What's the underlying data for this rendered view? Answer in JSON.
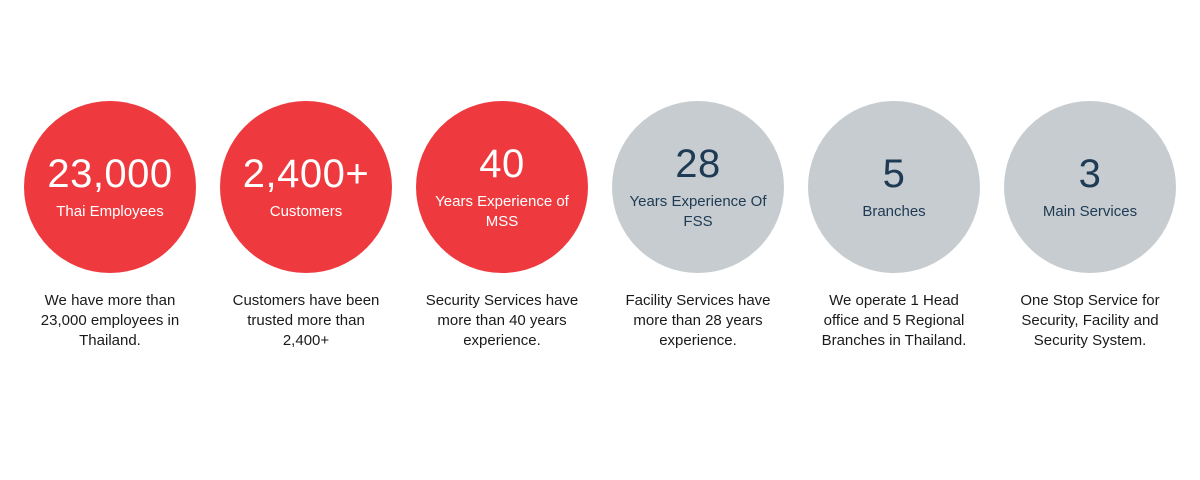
{
  "colors": {
    "circle_red": "#EE3A3E",
    "circle_gray": "#C6CCCF",
    "navy_text": "#1E3A54",
    "body_text": "#1A1A1A",
    "background": "#FFFFFF"
  },
  "stats": [
    {
      "value": "23,000",
      "label": "Thai Employees",
      "description": "We have more than 23,000 employees in Thailand.",
      "variant": "red"
    },
    {
      "value": "2,400+",
      "label": "Customers",
      "description": "Customers have been trusted more than 2,400+",
      "variant": "red"
    },
    {
      "value": "40",
      "label": "Years Experience of MSS",
      "description": "Security Services have more than 40 years experience.",
      "variant": "red"
    },
    {
      "value": "28",
      "label": "Years Experience Of FSS",
      "description": "Facility Services have more than 28 years experience.",
      "variant": "gray"
    },
    {
      "value": "5",
      "label": "Branches",
      "description": "We operate 1 Head office and 5 Regional Branches in Thailand.",
      "variant": "gray"
    },
    {
      "value": "3",
      "label": "Main Services",
      "description": "One Stop Service for Security, Facility and Security System.",
      "variant": "gray"
    }
  ]
}
